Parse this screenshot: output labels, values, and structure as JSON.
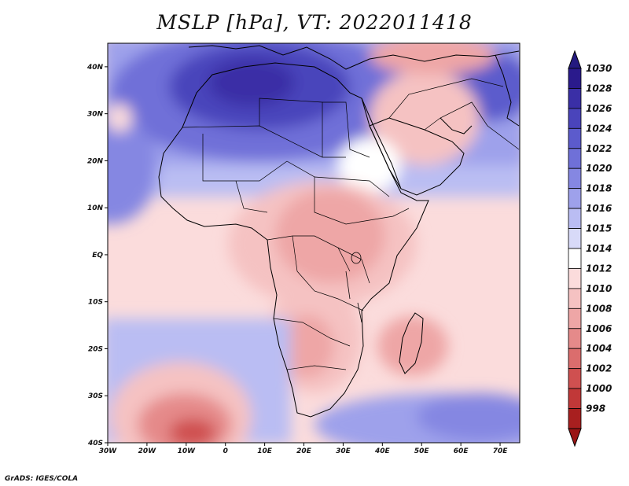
{
  "title": "MSLP [hPa], VT: 2022011418",
  "credit": "GrADS: IGES/COLA",
  "map": {
    "lon_range": [
      -30,
      75
    ],
    "lat_range": [
      -40,
      45
    ],
    "lat_ticks": [
      {
        "value": 40,
        "label": "40N"
      },
      {
        "value": 30,
        "label": "30N"
      },
      {
        "value": 20,
        "label": "20N"
      },
      {
        "value": 10,
        "label": "10N"
      },
      {
        "value": 0,
        "label": "EQ"
      },
      {
        "value": -10,
        "label": "10S"
      },
      {
        "value": -20,
        "label": "20S"
      },
      {
        "value": -30,
        "label": "30S"
      },
      {
        "value": -40,
        "label": "40S"
      }
    ],
    "lon_ticks": [
      {
        "value": -30,
        "label": "30W"
      },
      {
        "value": -20,
        "label": "20W"
      },
      {
        "value": -10,
        "label": "10W"
      },
      {
        "value": 0,
        "label": "0"
      },
      {
        "value": 10,
        "label": "10E"
      },
      {
        "value": 20,
        "label": "20E"
      },
      {
        "value": 30,
        "label": "30E"
      },
      {
        "value": 40,
        "label": "40E"
      },
      {
        "value": 50,
        "label": "50E"
      },
      {
        "value": 60,
        "label": "60E"
      },
      {
        "value": 70,
        "label": "70E"
      }
    ]
  },
  "colorbar": [
    {
      "label": "1030",
      "color": "#2a1a8c"
    },
    {
      "label": "1028",
      "color": "#3a2fa6"
    },
    {
      "label": "1026",
      "color": "#4a44bb"
    },
    {
      "label": "1024",
      "color": "#5c5bcc"
    },
    {
      "label": "1022",
      "color": "#6f70d8"
    },
    {
      "label": "1020",
      "color": "#8587e2"
    },
    {
      "label": "1018",
      "color": "#9ea1eb"
    },
    {
      "label": "1016",
      "color": "#babdf3"
    },
    {
      "label": "1015",
      "color": "#d8daf8"
    },
    {
      "label": "1014",
      "color": "#ffffff"
    },
    {
      "label": "1012",
      "color": "#fbdcdc"
    },
    {
      "label": "1010",
      "color": "#f5c2c2"
    },
    {
      "label": "1008",
      "color": "#eea6a6"
    },
    {
      "label": "1006",
      "color": "#e58a8a"
    },
    {
      "label": "1004",
      "color": "#db6d6d"
    },
    {
      "label": "1002",
      "color": "#cf5050"
    },
    {
      "label": "1000",
      "color": "#c13838"
    },
    {
      "label": "998",
      "color": "#a81f1f"
    }
  ],
  "colorbar_top_color": "#241a80",
  "colorbar_bottom_color": "#9a1515"
}
